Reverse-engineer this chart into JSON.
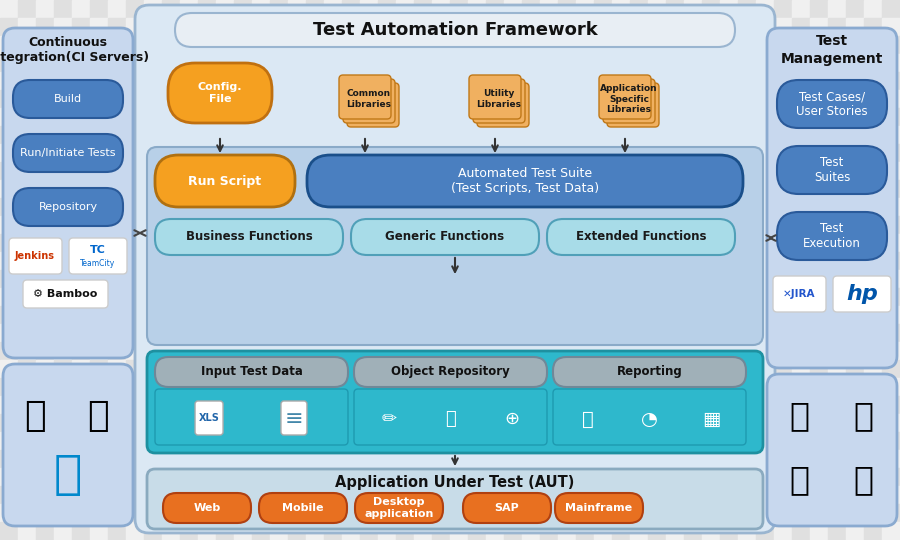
{
  "title": "Test Automation Framework",
  "main_frame_color": "#dbe8f4",
  "main_frame_border": "#9ab5d0",
  "title_bar_color": "#e8eef4",
  "left_panel_title": "Continuous\nIntegration(CI Servers)",
  "left_panel_color": "#c8d8ee",
  "left_panel_border": "#8aaad0",
  "left_buttons": [
    "Build",
    "Run/Initiate Tests",
    "Repository"
  ],
  "left_btn_color": "#4a7fc0",
  "right_panel_title": "Test\nManagement",
  "right_panel_color": "#c8d8ee",
  "right_panel_border": "#8aaad0",
  "right_buttons": [
    "Test Cases/\nUser Stories",
    "Test\nSuites",
    "Test\nExecution"
  ],
  "right_btn_color": "#4a7fc0",
  "orange_color": "#f5a020",
  "teal_section_color": "#2eb8cc",
  "teal_section_border": "#1e90a0",
  "inner_blue_color": "#b8d0e8",
  "inner_blue_border": "#8aaac8",
  "ats_box_color": "#4a7fc0",
  "ats_box_border": "#1a4f8a",
  "run_script_color": "#f5a020",
  "func_box_color": "#a8dce8",
  "func_box_border": "#50a0b8",
  "gray_header_color": "#a0b0b8",
  "gray_header_border": "#708898",
  "aut_section_color": "#c8dce8",
  "aut_section_border": "#8aaabf",
  "bottom_btn_color": "#e87020",
  "bottom_btn_border": "#b04010",
  "checker_light": "#f0f0f0",
  "checker_dark": "#e0e0e0",
  "logo_bg": "#ffffff",
  "logo_border": "#cccccc",
  "bottom_buttons": [
    "Web",
    "Mobile",
    "Desktop\napplication",
    "SAP",
    "Mainframe"
  ],
  "func_labels": [
    "Business Functions",
    "Generic Functions",
    "Extended Functions"
  ],
  "data_headers": [
    "Input Test Data",
    "Object Repository",
    "Reporting"
  ],
  "icon_labels": [
    "Config.\nFile",
    "Common\nLibraries",
    "Utility\nLibraries",
    "Application\nSpecific\nLibraries"
  ]
}
